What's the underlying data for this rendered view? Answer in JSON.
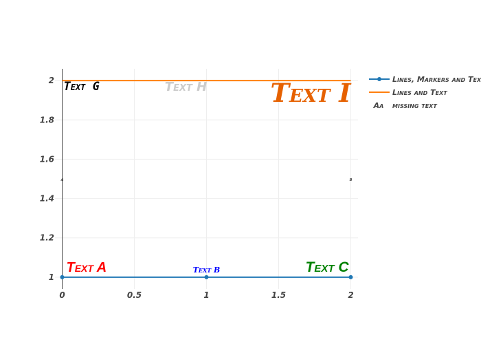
{
  "chart_data": {
    "type": "line",
    "title": "",
    "xlabel": "",
    "ylabel": "",
    "xlim": [
      -0.05,
      2.05
    ],
    "ylim": [
      0.94,
      2.06
    ],
    "x_ticks": [
      {
        "value": 0,
        "label": "0"
      },
      {
        "value": 0.5,
        "label": "0.5"
      },
      {
        "value": 1,
        "label": "1"
      },
      {
        "value": 1.5,
        "label": "1.5"
      },
      {
        "value": 2,
        "label": "2"
      }
    ],
    "y_ticks": [
      {
        "value": 1,
        "label": "1"
      },
      {
        "value": 1.2,
        "label": "1.2"
      },
      {
        "value": 1.4,
        "label": "1.4"
      },
      {
        "value": 1.6,
        "label": "1.6"
      },
      {
        "value": 1.8,
        "label": "1.8"
      },
      {
        "value": 2,
        "label": "2"
      }
    ],
    "grid": true,
    "legend_position": "top-right",
    "series": [
      {
        "name": "Lines, Markers and Text",
        "mode": "lines+markers+text",
        "color": "#1f77b4",
        "x": [
          0,
          1,
          2
        ],
        "y": [
          1,
          1,
          1
        ],
        "text": [
          "Text A",
          "Text B",
          "Text C"
        ],
        "text_colors": [
          "#ff0000",
          "#0000ff",
          "#008000"
        ],
        "text_positions": [
          "top right",
          "top center",
          "top left"
        ]
      },
      {
        "name": "Lines and Text",
        "mode": "lines+text",
        "color": "#ff7f0e",
        "x": [
          0,
          1,
          2
        ],
        "y": [
          2,
          2,
          2
        ],
        "text": [
          "Text G",
          "Text H",
          "Text I"
        ],
        "text_colors": [
          "#000000",
          "#cccccc",
          "#e66100"
        ],
        "text_positions": [
          "bottom right",
          "bottom center",
          "bottom left"
        ]
      },
      {
        "name": "missing text",
        "mode": "text",
        "color": "#444444",
        "x": [
          0,
          2
        ],
        "y": [
          1.5,
          1.5
        ],
        "text": [
          "a",
          "b"
        ],
        "text_colors": [
          "#444444",
          "#444444"
        ],
        "text_positions": [
          "middle center",
          "middle center"
        ]
      }
    ],
    "legend_text_symbol": "Aa"
  }
}
